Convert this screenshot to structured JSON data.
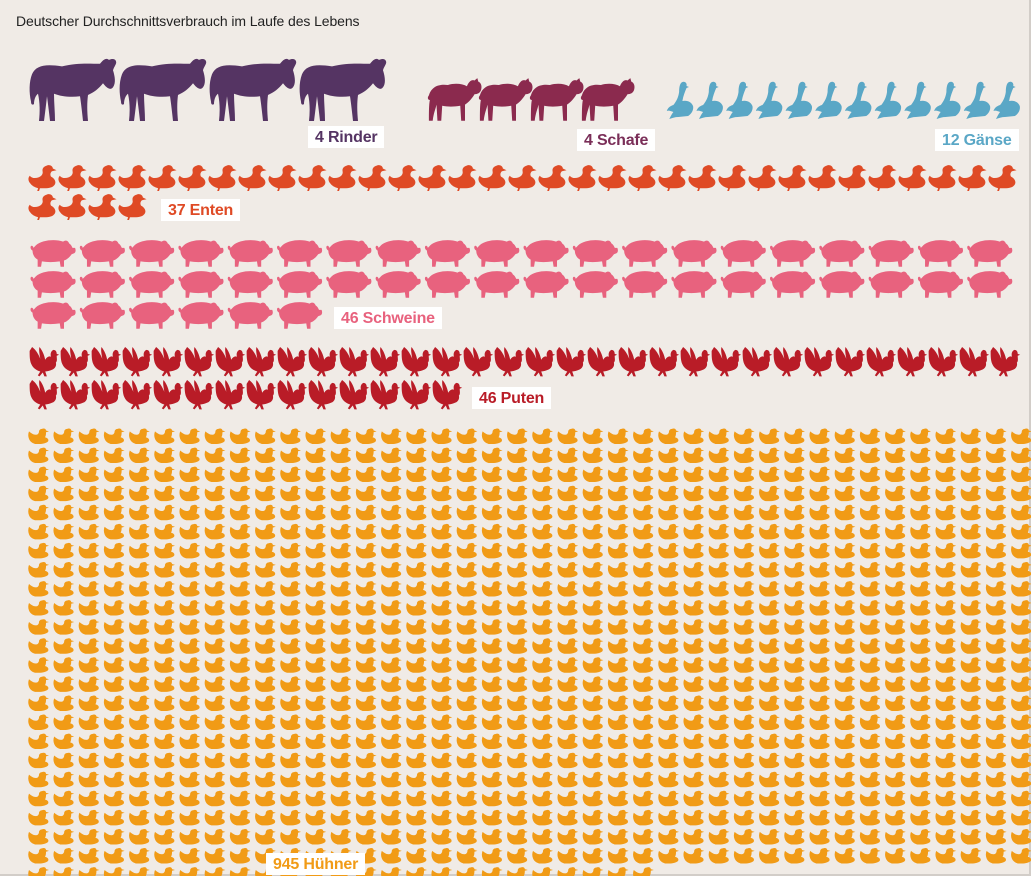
{
  "chart_data": {
    "type": "pictogram",
    "title": "Deutscher Durchschnittsverbrauch im Laufe des Lebens",
    "series": [
      {
        "key": "rinder",
        "name": "Rinder",
        "label": "4 Rinder",
        "value": 4,
        "icon": "cow-icon",
        "color": "#553463"
      },
      {
        "key": "schafe",
        "name": "Schafe",
        "label": "4 Schafe",
        "value": 4,
        "icon": "sheep-icon",
        "color": "#8b2a4e"
      },
      {
        "key": "gaense",
        "name": "Gänse",
        "label": "12 Gänse",
        "value": 12,
        "icon": "goose-icon",
        "color": "#5aa7c6"
      },
      {
        "key": "enten",
        "name": "Enten",
        "label": "37 Enten",
        "value": 37,
        "icon": "duck-icon",
        "color": "#df4a25"
      },
      {
        "key": "schweine",
        "name": "Schweine",
        "label": "46 Schweine",
        "value": 46,
        "icon": "pig-icon",
        "color": "#e8627e"
      },
      {
        "key": "puten",
        "name": "Puten",
        "label": "46 Puten",
        "value": 46,
        "icon": "turkey-icon",
        "color": "#b91c27"
      },
      {
        "key": "huehner",
        "name": "Hühner",
        "label": "945 Hühner",
        "value": 945,
        "icon": "chicken-icon",
        "color": "#f19b16"
      }
    ]
  }
}
